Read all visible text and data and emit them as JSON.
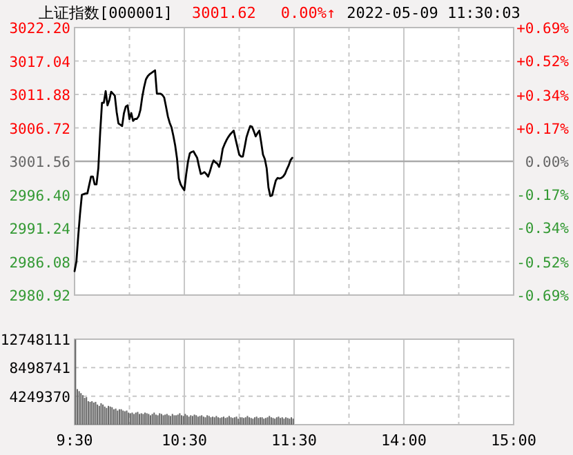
{
  "chart_data": [
    {
      "type": "line",
      "title": "上证指数[000001]",
      "annotations": [
        "3001.62",
        "0.00%↑",
        "2022-05-09 11:30:03"
      ],
      "categories": [
        null,
        null,
        null,
        null,
        null,
        null,
        null,
        null,
        null,
        null,
        null,
        null,
        null,
        null,
        null,
        null,
        null,
        null,
        null,
        null,
        null,
        null,
        null,
        null,
        null,
        null,
        null,
        null,
        null,
        null,
        null,
        null,
        null,
        null,
        null,
        null,
        null,
        null,
        null,
        null,
        null,
        null,
        null,
        null,
        null,
        null,
        null,
        null,
        null,
        null,
        null,
        null,
        null,
        null,
        null,
        null,
        null,
        null,
        null,
        null,
        null,
        null,
        null,
        null,
        null,
        null,
        null,
        null,
        null,
        null,
        null,
        null,
        null,
        null,
        null,
        null,
        null,
        null,
        null,
        null,
        null,
        null,
        null,
        null,
        null,
        null,
        null,
        null,
        null,
        null,
        null,
        null,
        null,
        null,
        null,
        null,
        null,
        null,
        null,
        null,
        null,
        null,
        null,
        null,
        null,
        null,
        null,
        null,
        null,
        null,
        null,
        null,
        null,
        null,
        null,
        null,
        null,
        null,
        null,
        null,
        null,
        null,
        null,
        null,
        null,
        null,
        null,
        null,
        null,
        null,
        null,
        null,
        null,
        null,
        null,
        null,
        null,
        null,
        null,
        null,
        null,
        null,
        null,
        null,
        null,
        null,
        null,
        null,
        null,
        null,
        null,
        null,
        null,
        null,
        null,
        null,
        null,
        null,
        null,
        null,
        null,
        null,
        null,
        null,
        null,
        null,
        null,
        null,
        null,
        null,
        null,
        null,
        null,
        null,
        null,
        null,
        null,
        null,
        null,
        null,
        null,
        null,
        null,
        null,
        null,
        null,
        null,
        null,
        null,
        null,
        null,
        null,
        null,
        null,
        null,
        null,
        null,
        null,
        null,
        null,
        null,
        null,
        null,
        null,
        null,
        null,
        null,
        null,
        null,
        null,
        null,
        null,
        null,
        null,
        null,
        null,
        null,
        null,
        null,
        null,
        null,
        null,
        null,
        null,
        null,
        null,
        null,
        null,
        null,
        null,
        null,
        null,
        null,
        null,
        null,
        null,
        null,
        null,
        null,
        null,
        null
      ],
      "series": [
        {
          "color": "#000000",
          "values": [
            2984.6,
            2986.1,
            2990.0,
            2993.5,
            2996.4,
            2996.5,
            2996.6,
            2996.6,
            2997.9,
            2999.2,
            2999.2,
            2998.0,
            2998.0,
            3000.5,
            3006.0,
            3010.6,
            3010.6,
            3012.4,
            3010.2,
            3011.0,
            3012.3,
            3012.0,
            3011.7,
            3009.2,
            3007.4,
            3007.2,
            3007.0,
            3009.0,
            3010.0,
            3010.2,
            3008.1,
            3009.0,
            3007.8,
            3008.1,
            3008.1,
            3008.5,
            3009.5,
            3011.5,
            3013.0,
            3014.2,
            3014.7,
            3015.0,
            3015.2,
            3015.4,
            3015.6,
            3012.0,
            3012.0,
            3012.0,
            3011.8,
            3011.4,
            3010.0,
            3008.5,
            3007.5,
            3006.8,
            3005.5,
            3004.0,
            3002.0,
            2998.9,
            2998.0,
            2997.5,
            2997.1,
            2999.5,
            3001.5,
            3002.8,
            3003.0,
            3003.1,
            3002.6,
            3002.1,
            3000.8,
            2999.6,
            2999.7,
            2999.9,
            2999.6,
            2999.2,
            3000.0,
            3001.0,
            3001.7,
            3001.4,
            3001.2,
            3000.7,
            3001.8,
            3003.5,
            3004.2,
            3004.8,
            3005.3,
            3005.7,
            3006.0,
            3006.3,
            3005.0,
            3003.8,
            3002.6,
            3002.3,
            3002.3,
            3003.8,
            3005.3,
            3006.2,
            3007.0,
            3006.9,
            3006.2,
            3005.4,
            3005.9,
            3006.3,
            3004.5,
            3002.6,
            3001.9,
            3000.5,
            2997.5,
            2996.2,
            2996.3,
            2997.5,
            2998.6,
            2999.0,
            2998.9,
            2999.0,
            2999.2,
            2999.6,
            3000.3,
            3000.9,
            3001.7,
            3002.1,
            null,
            null,
            null,
            null,
            null,
            null,
            null,
            null,
            null,
            null,
            null,
            null,
            null,
            null,
            null,
            null,
            null,
            null,
            null,
            null,
            null,
            null,
            null,
            null,
            null,
            null,
            null,
            null,
            null,
            null,
            null,
            null,
            null,
            null,
            null,
            null,
            null,
            null,
            null,
            null,
            null,
            null,
            null,
            null,
            null,
            null,
            null,
            null,
            null,
            null,
            null,
            null,
            null,
            null,
            null,
            null,
            null,
            null,
            null,
            null,
            null,
            null,
            null,
            null,
            null,
            null,
            null,
            null,
            null,
            null,
            null,
            null,
            null,
            null,
            null,
            null,
            null,
            null,
            null,
            null,
            null,
            null,
            null,
            null,
            null,
            null,
            null,
            null,
            null,
            null,
            null,
            null,
            null,
            null,
            null,
            null,
            null,
            null,
            null,
            null,
            null,
            null,
            null,
            null,
            null,
            null,
            null,
            null,
            null,
            null,
            null,
            null,
            null,
            null,
            null,
            null,
            null,
            null,
            null,
            null,
            null
          ]
        }
      ],
      "ylim": [
        2980.92,
        3022.2
      ],
      "yticks": [
        {
          "value": 3022.2,
          "label": "3022.20"
        },
        3017.04,
        3011.88,
        3006.72,
        3001.56,
        {
          "value": 2996.4,
          "label": "2996.40"
        },
        2991.24,
        2986.08,
        2980.92
      ],
      "y2lim": [
        -0.69,
        0.69
      ],
      "y2ticks": [
        {
          "value": 0.69,
          "label": "+0.69%"
        },
        {
          "value": 0.52,
          "label": "+0.52%"
        },
        {
          "value": 0.34,
          "label": "+0.34%"
        },
        {
          "value": 0.17,
          "label": "+0.17%"
        },
        {
          "value": 0,
          "label": "0.00%"
        },
        {
          "value": -0.17,
          "label": "-0.17%"
        },
        {
          "value": -0.34,
          "label": "-0.34%"
        },
        {
          "value": -0.52,
          "label": "-0.52%"
        },
        {
          "value": -0.69,
          "label": "-0.69%"
        }
      ],
      "ref_lines": [
        {
          "axis": "y",
          "value": 3001.56,
          "color": "#aaaaaa"
        }
      ],
      "grid": true,
      "tick_labels": "y"
    },
    {
      "type": "bar",
      "color": "#666666",
      "categories": [
        "9:30",
        null,
        null,
        null,
        null,
        null,
        null,
        null,
        null,
        null,
        null,
        null,
        null,
        null,
        null,
        null,
        null,
        null,
        null,
        null,
        null,
        null,
        null,
        null,
        null,
        null,
        null,
        null,
        null,
        null,
        null,
        null,
        null,
        null,
        null,
        null,
        null,
        null,
        null,
        null,
        null,
        null,
        null,
        null,
        null,
        null,
        null,
        null,
        null,
        null,
        null,
        null,
        null,
        null,
        null,
        null,
        null,
        null,
        null,
        null,
        "10:30",
        null,
        null,
        null,
        null,
        null,
        null,
        null,
        null,
        null,
        null,
        null,
        null,
        null,
        null,
        null,
        null,
        null,
        null,
        null,
        null,
        null,
        null,
        null,
        null,
        null,
        null,
        null,
        null,
        null,
        null,
        null,
        null,
        null,
        null,
        null,
        null,
        null,
        null,
        null,
        null,
        null,
        null,
        null,
        null,
        null,
        null,
        null,
        null,
        null,
        null,
        null,
        null,
        null,
        null,
        null,
        null,
        null,
        null,
        null,
        "11:30",
        null,
        null,
        null,
        null,
        null,
        null,
        null,
        null,
        null,
        null,
        null,
        null,
        null,
        null,
        null,
        null,
        null,
        null,
        null,
        null,
        null,
        null,
        null,
        null,
        null,
        null,
        null,
        null,
        null,
        null,
        null,
        null,
        null,
        null,
        null,
        null,
        null,
        null,
        null,
        null,
        null,
        null,
        null,
        null,
        null,
        null,
        null,
        null,
        null,
        null,
        null,
        null,
        null,
        null,
        null,
        null,
        null,
        null,
        null,
        "14:00",
        null,
        null,
        null,
        null,
        null,
        null,
        null,
        null,
        null,
        null,
        null,
        null,
        null,
        null,
        null,
        null,
        null,
        null,
        null,
        null,
        null,
        null,
        null,
        null,
        null,
        null,
        null,
        null,
        null,
        null,
        null,
        null,
        null,
        null,
        null,
        null,
        null,
        null,
        null,
        null,
        null,
        null,
        null,
        null,
        null,
        null,
        null,
        null,
        null,
        null,
        null,
        null,
        null,
        null,
        null,
        null,
        null,
        null,
        null,
        "15:00"
      ],
      "values": [
        12700000,
        5300000,
        5000000,
        4700000,
        4400000,
        4000000,
        4100000,
        3500000,
        3400000,
        3500000,
        3300000,
        3400000,
        3000000,
        2800000,
        3200000,
        3000000,
        2700000,
        2500000,
        2800000,
        2700000,
        2600000,
        2300000,
        2400000,
        2100000,
        2300000,
        2300000,
        2100000,
        2000000,
        2100000,
        1800000,
        1700000,
        1800000,
        1600000,
        1800000,
        1900000,
        1600000,
        1700000,
        1600000,
        1800000,
        1700000,
        1600000,
        1400000,
        1600000,
        1800000,
        1500000,
        1400000,
        1700000,
        1600000,
        1400000,
        1500000,
        1600000,
        1400000,
        1300000,
        1600000,
        1400000,
        1400000,
        1500000,
        1700000,
        1400000,
        1300000,
        1600000,
        1400000,
        1200000,
        1400000,
        1300000,
        1500000,
        1400000,
        1200000,
        1300000,
        1400000,
        1200000,
        1100000,
        1400000,
        1300000,
        1100000,
        1200000,
        1100000,
        1300000,
        1100000,
        1000000,
        1100000,
        1200000,
        1000000,
        1100000,
        1300000,
        1100000,
        1000000,
        1100000,
        1200000,
        900000,
        1100000,
        1100000,
        1000000,
        1100000,
        1300000,
        1100000,
        1000000,
        900000,
        1100000,
        1200000,
        1000000,
        1100000,
        1100000,
        900000,
        1000000,
        1100000,
        1300000,
        1100000,
        1000000,
        900000,
        1100000,
        1200000,
        1000000,
        1100000,
        900000,
        1100000,
        1000000,
        900000,
        1100000,
        900000,
        null,
        null,
        null,
        null,
        null,
        null,
        null,
        null,
        null,
        null,
        null,
        null,
        null,
        null,
        null,
        null,
        null,
        null,
        null,
        null,
        null,
        null,
        null,
        null,
        null,
        null,
        null,
        null,
        null,
        null,
        null,
        null,
        null,
        null,
        null,
        null,
        null,
        null,
        null,
        null,
        null,
        null,
        null,
        null,
        null,
        null,
        null,
        null,
        null,
        null,
        null,
        null,
        null,
        null,
        null,
        null,
        null,
        null,
        null,
        null,
        null,
        null,
        null,
        null,
        null,
        null,
        null,
        null,
        null,
        null,
        null,
        null,
        null,
        null,
        null,
        null,
        null,
        null,
        null,
        null,
        null,
        null,
        null,
        null,
        null,
        null,
        null,
        null,
        null,
        null,
        null,
        null,
        null,
        null,
        null,
        null,
        null,
        null,
        null,
        null,
        null,
        null,
        null,
        null,
        null,
        null,
        null,
        null,
        null,
        null,
        null,
        null,
        null,
        null,
        null,
        null,
        null,
        null,
        null,
        null,
        null
      ],
      "ylim": [
        0,
        12748111
      ],
      "yticks": [
        4249370,
        8498741,
        12748111
      ],
      "grid": true
    }
  ]
}
